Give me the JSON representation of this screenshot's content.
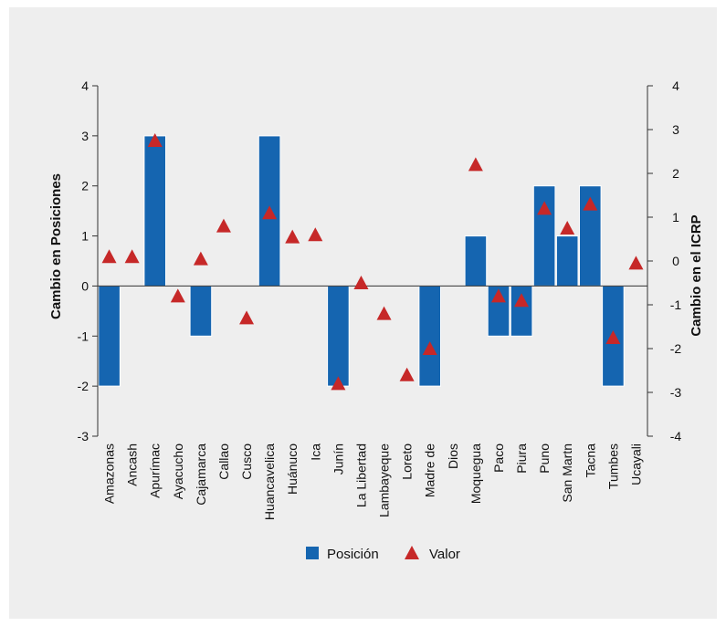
{
  "chart_data": {
    "type": "bar",
    "categories": [
      "Amazonas",
      "Ancash",
      "Apurímac",
      "Ayacucho",
      "Cajamarca",
      "Callao",
      "Cusco",
      "Huancavelica",
      "Huánuco",
      "Ica",
      "Junín",
      "La Libertad",
      "Lambayeque",
      "Loreto",
      "Madre de",
      "Dios",
      "Moquegua",
      "Paco",
      "Piura",
      "Puno",
      "San Martn",
      "Tacna",
      "Tumbes",
      "Ucayali"
    ],
    "series": [
      {
        "name": "Posición",
        "kind": "bar",
        "axis": "left",
        "color": "#1565b0",
        "values": [
          -2,
          0,
          3,
          0,
          -1,
          0,
          0,
          3,
          0,
          0,
          -2,
          0,
          0,
          0,
          -2,
          0,
          1,
          -1,
          -1,
          2,
          1,
          2,
          -2,
          0
        ]
      },
      {
        "name": "Valor",
        "kind": "marker",
        "marker": "triangle",
        "axis": "right",
        "color": "#c62828",
        "values": [
          0.1,
          0.1,
          2.75,
          -0.8,
          0.05,
          0.8,
          -1.3,
          1.1,
          0.55,
          0.6,
          -2.8,
          -0.5,
          -1.2,
          -2.6,
          -2.0,
          null,
          2.2,
          -0.8,
          -0.9,
          1.2,
          0.75,
          1.3,
          -1.75,
          -0.05
        ]
      }
    ],
    "ylabel": "Cambio en Posiciones",
    "y2label": "Cambio en el ICRP",
    "ylim": [
      -3,
      4
    ],
    "y2lim": [
      -4,
      4
    ],
    "yticks": [
      "-3",
      "-2",
      "-1",
      "0",
      "1",
      "2",
      "3",
      "4"
    ],
    "y2ticks": [
      "-4",
      "-3",
      "-2",
      "-1",
      "0",
      "1",
      "2",
      "3",
      "4"
    ],
    "legend": {
      "placement": "bottom",
      "items": [
        "Posición",
        "Valor"
      ]
    },
    "grid": false
  }
}
